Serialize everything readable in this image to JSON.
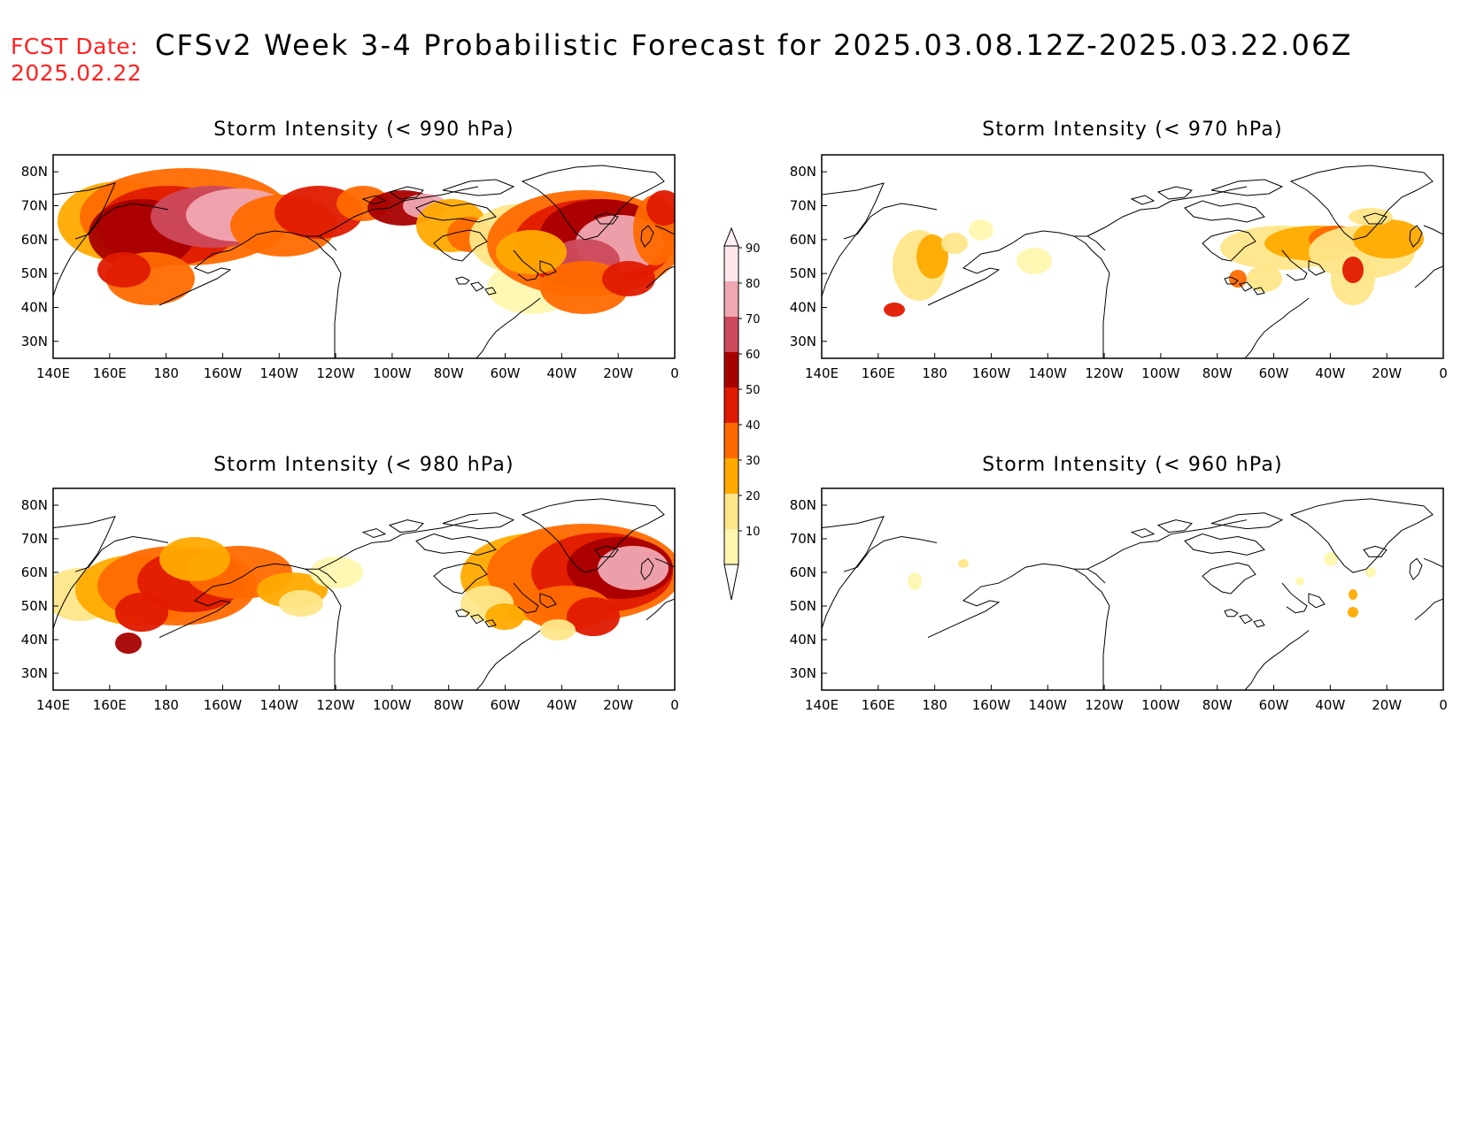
{
  "header": {
    "fcst_label": "FCST Date:",
    "fcst_date": "2025.02.22",
    "title": "CFSv2 Week 3-4 Probabilistic Forecast for 2025.03.08.12Z-2025.03.22.06Z"
  },
  "axes": {
    "lon_labels": [
      "140E",
      "160E",
      "180",
      "160W",
      "140W",
      "120W",
      "100W",
      "80W",
      "60W",
      "40W",
      "20W",
      "0"
    ],
    "lat_labels": [
      "80N",
      "70N",
      "60N",
      "50N",
      "40N",
      "30N"
    ]
  },
  "colorbar": {
    "levels": [
      "10",
      "20",
      "30",
      "40",
      "50",
      "60",
      "70",
      "80",
      "90"
    ],
    "colors": [
      "#fff7b0",
      "#ffe68a",
      "#ffaa00",
      "#ff6a00",
      "#e01a00",
      "#a80000",
      "#cc4a5c",
      "#f0a8b2",
      "#ffe8ec"
    ]
  },
  "panels": [
    {
      "id": "p990",
      "title": "Storm Intensity (< 990 hPa)",
      "threshold": "990 hPa"
    },
    {
      "id": "p970",
      "title": "Storm Intensity (< 970 hPa)",
      "threshold": "970 hPa"
    },
    {
      "id": "p980",
      "title": "Storm Intensity (< 980 hPa)",
      "threshold": "980 hPa"
    },
    {
      "id": "p960",
      "title": "Storm Intensity (< 960 hPa)",
      "threshold": "960 hPa"
    }
  ]
}
